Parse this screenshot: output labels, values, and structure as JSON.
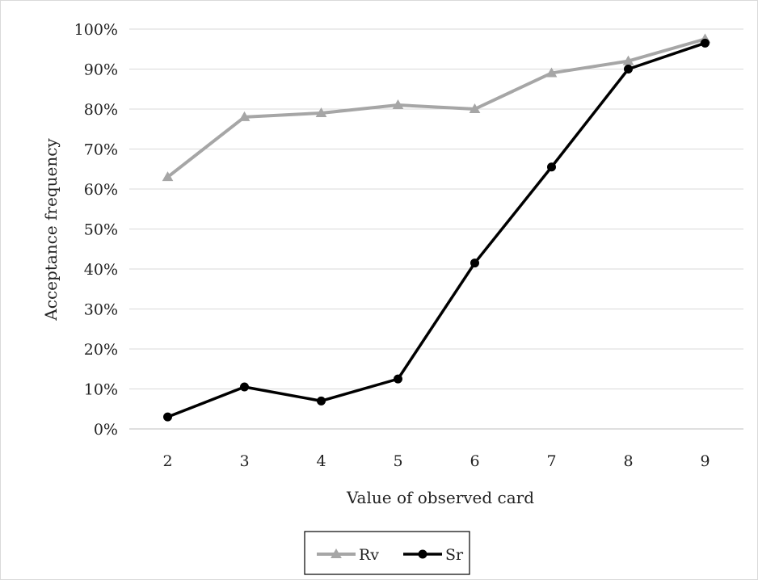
{
  "chart_data": {
    "type": "line",
    "title": "",
    "xlabel": "Value of observed card",
    "ylabel": "Acceptance frequency",
    "categories": [
      "2",
      "3",
      "4",
      "5",
      "6",
      "7",
      "8",
      "9"
    ],
    "y_ticks": [
      "0%",
      "10%",
      "20%",
      "30%",
      "40%",
      "50%",
      "60%",
      "70%",
      "80%",
      "90%",
      "100%"
    ],
    "ylim": [
      0,
      100
    ],
    "y_unit": "%",
    "grid": true,
    "legend_position": "bottom-center",
    "series": [
      {
        "name": "Rv",
        "color": "#a6a6a6",
        "marker": "triangle",
        "values": [
          63,
          78,
          79,
          81,
          80,
          89,
          92,
          97.5
        ]
      },
      {
        "name": "Sr",
        "color": "#000000",
        "marker": "circle",
        "values": [
          3,
          10.5,
          7,
          12.5,
          41.5,
          65.5,
          90,
          96.5
        ]
      }
    ]
  }
}
